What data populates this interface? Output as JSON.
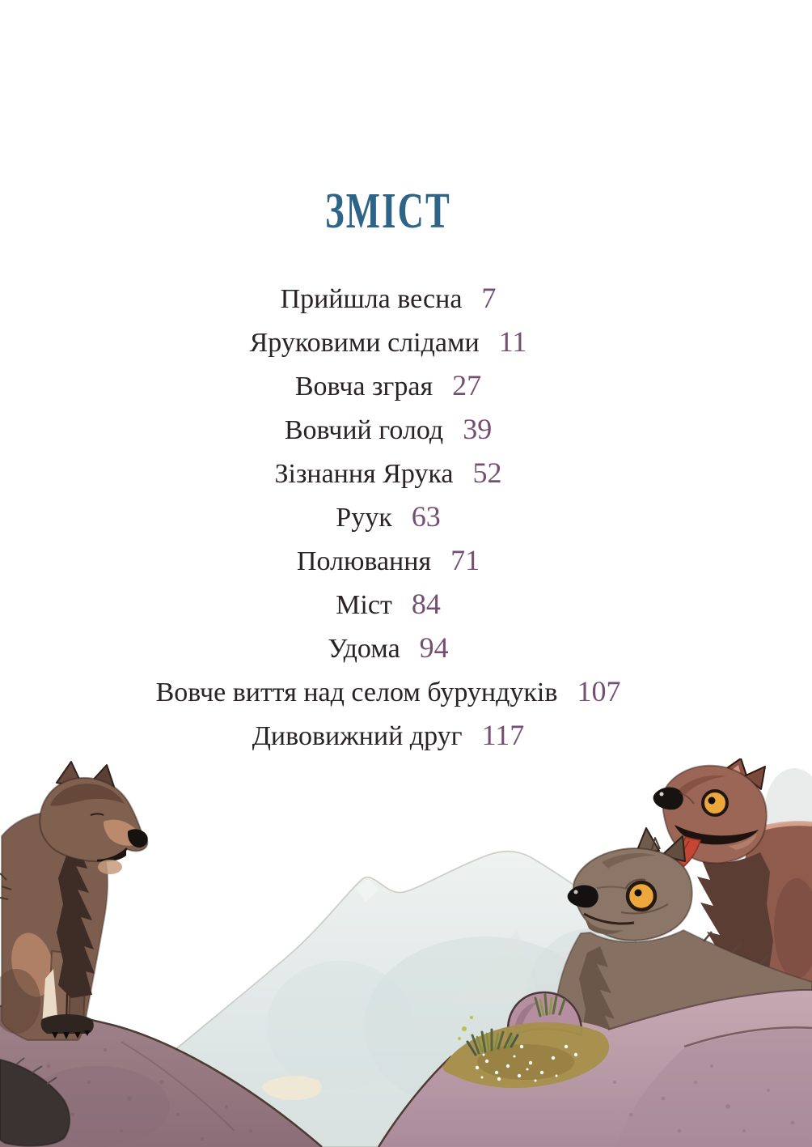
{
  "theme": {
    "background": "#ffffff",
    "title_color": "#2d6487",
    "number_color": "#744f72",
    "text_color": "#2a2225"
  },
  "page": {
    "title": "ЗМІСТ"
  },
  "toc": {
    "entries": [
      {
        "title": "Прийшла весна",
        "page": "7"
      },
      {
        "title": "Яруковими слідами",
        "page": "11"
      },
      {
        "title": "Вовча зграя",
        "page": "27"
      },
      {
        "title": "Вовчий голод",
        "page": "39"
      },
      {
        "title": "Зізнання Ярука",
        "page": "52"
      },
      {
        "title": "Руук",
        "page": "63"
      },
      {
        "title": "Полювання",
        "page": "71"
      },
      {
        "title": "Міст",
        "page": "84"
      },
      {
        "title": "Удома",
        "page": "94"
      },
      {
        "title": "Вовче виття над селом бурундуків",
        "page": "107"
      },
      {
        "title": "Дивовижний друг",
        "page": "117"
      }
    ]
  },
  "illustration": {
    "description": "Watercolor illustration: a dark brown wolf sits on a mauve hill at left, facing right across a pale blue-grey mountain toward two wolves at right — a red-brown wolf with its tongue out and a grey-brown wolf with an amber eye — standing behind a pink-mauve hill with a golden grassy patch, green grass tufts and tiny white flowers.",
    "colors": {
      "mountain": "#e3e9e8",
      "left_hill": "#977983",
      "right_hill": "#c0a2ad",
      "grass_gold": "#a7904a",
      "grass_green": "#57663f",
      "wolf_left_brown": "#7c5d4e",
      "wolf_left_mane": "#3e2d26",
      "wolf_red_brown": "#9b6655",
      "wolf_grey_brown": "#8c7667",
      "eye_amber": "#eca73d",
      "tongue_red": "#c44634",
      "flower_white": "#ffffff"
    }
  }
}
